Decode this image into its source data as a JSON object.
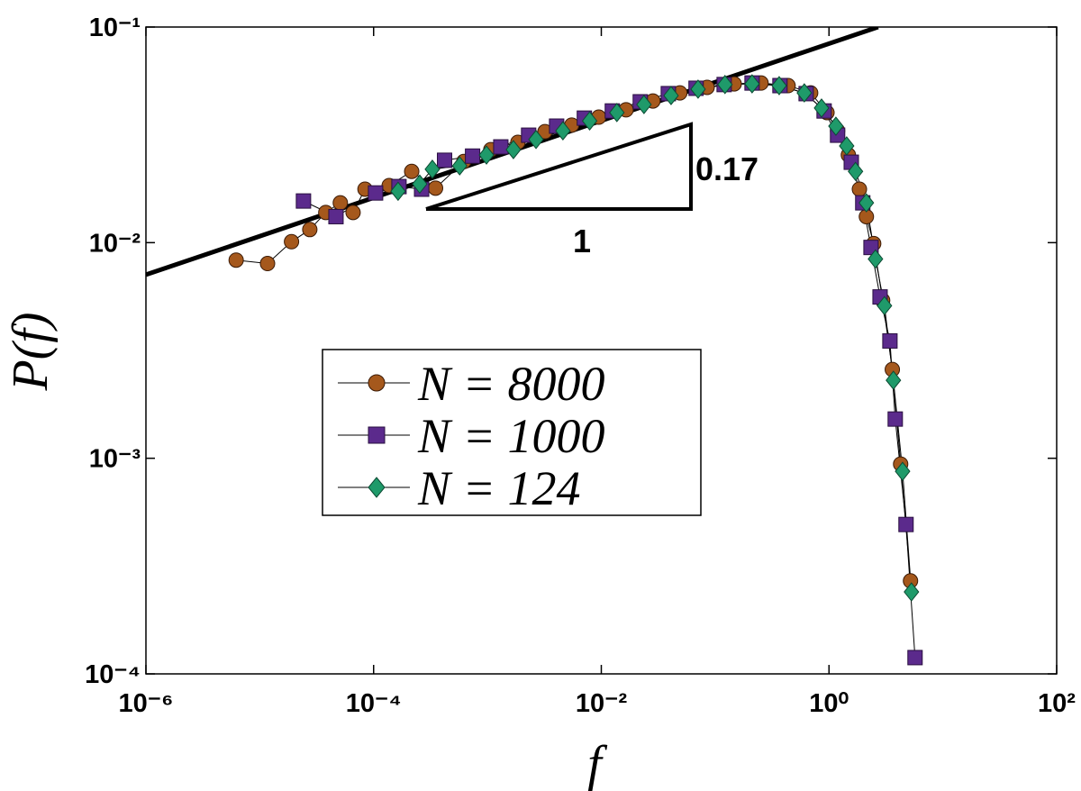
{
  "chart_data": {
    "type": "line",
    "xlabel": "f",
    "ylabel": "P(f)",
    "xscale": "log",
    "yscale": "log",
    "xlim": [
      1e-06,
      100
    ],
    "ylim": [
      0.0001,
      0.1
    ],
    "xticks": [
      {
        "value": 1e-06,
        "label": "10⁻⁶"
      },
      {
        "value": 0.0001,
        "label": "10⁻⁴"
      },
      {
        "value": 0.01,
        "label": "10⁻²"
      },
      {
        "value": 1,
        "label": "10⁰"
      },
      {
        "value": 100,
        "label": "10²"
      }
    ],
    "yticks": [
      {
        "value": 0.1,
        "label": "10⁻¹"
      },
      {
        "value": 0.01,
        "label": "10⁻²"
      },
      {
        "value": 0.001,
        "label": "10⁻³"
      },
      {
        "value": 0.0001,
        "label": "10⁻⁴"
      }
    ],
    "reference_line": {
      "x": [
        1e-06,
        2.7
      ],
      "values": [
        0.0071,
        0.1
      ],
      "color": "#000000"
    },
    "annotations": [
      "0.17",
      "1"
    ],
    "series": [
      {
        "name": "N = 8000",
        "color": "#a5581c",
        "marker": "circle",
        "x": [
          6.2e-06,
          1.17e-05,
          1.9e-05,
          2.75e-05,
          3.8e-05,
          5.1e-05,
          6.6e-05,
          8.4e-05,
          0.000137,
          0.000216,
          0.00035,
          0.00062,
          0.00107,
          0.00185,
          0.0032,
          0.0055,
          0.0095,
          0.0165,
          0.0284,
          0.049,
          0.085,
          0.147,
          0.253,
          0.437,
          0.69,
          0.96,
          1.19,
          1.48,
          1.85,
          2.13,
          2.47,
          2.96,
          3.6,
          4.26,
          5.2
        ],
        "values": [
          0.0083,
          0.008,
          0.0101,
          0.0115,
          0.0138,
          0.0153,
          0.0138,
          0.0177,
          0.0184,
          0.0214,
          0.0179,
          0.0238,
          0.027,
          0.0292,
          0.0327,
          0.0351,
          0.0382,
          0.0413,
          0.0454,
          0.0495,
          0.0525,
          0.0545,
          0.055,
          0.0535,
          0.0495,
          0.0401,
          0.033,
          0.0255,
          0.0177,
          0.0132,
          0.0099,
          0.0054,
          0.00258,
          0.00094,
          0.00027
        ]
      },
      {
        "name": "N = 1000",
        "color": "#5b2a8c",
        "marker": "square",
        "x": [
          2.42e-05,
          4.67e-05,
          0.000104,
          0.000167,
          0.000264,
          0.00042,
          0.00074,
          0.00131,
          0.0023,
          0.00405,
          0.0071,
          0.0125,
          0.022,
          0.0388,
          0.068,
          0.12,
          0.211,
          0.371,
          0.63,
          0.906,
          1.19,
          1.57,
          1.98,
          2.34,
          2.81,
          3.43,
          3.82,
          4.75,
          5.7
        ],
        "values": [
          0.0156,
          0.0132,
          0.017,
          0.0182,
          0.0177,
          0.0241,
          0.0252,
          0.0278,
          0.0315,
          0.0347,
          0.0378,
          0.0408,
          0.045,
          0.0491,
          0.052,
          0.0541,
          0.055,
          0.0535,
          0.0491,
          0.0408,
          0.0315,
          0.0236,
          0.0153,
          0.0095,
          0.0056,
          0.0035,
          0.00152,
          0.000493,
          0.000119
        ]
      },
      {
        "name": "N = 124",
        "color": "#1f9a6a",
        "marker": "diamond",
        "x": [
          0.000164,
          0.000254,
          0.000328,
          0.00057,
          0.00098,
          0.00169,
          0.00267,
          0.0046,
          0.0079,
          0.0137,
          0.0237,
          0.041,
          0.0708,
          0.122,
          0.211,
          0.365,
          0.607,
          0.86,
          1.15,
          1.43,
          1.71,
          2.13,
          2.56,
          3.07,
          3.68,
          4.43,
          5.3
        ],
        "values": [
          0.0173,
          0.0187,
          0.0219,
          0.0227,
          0.0255,
          0.027,
          0.0301,
          0.033,
          0.0367,
          0.0401,
          0.0437,
          0.0481,
          0.0515,
          0.0541,
          0.0545,
          0.0535,
          0.0495,
          0.0421,
          0.0347,
          0.0281,
          0.0214,
          0.0153,
          0.0084,
          0.0051,
          0.0023,
          0.00087,
          0.00024
        ]
      }
    ]
  }
}
